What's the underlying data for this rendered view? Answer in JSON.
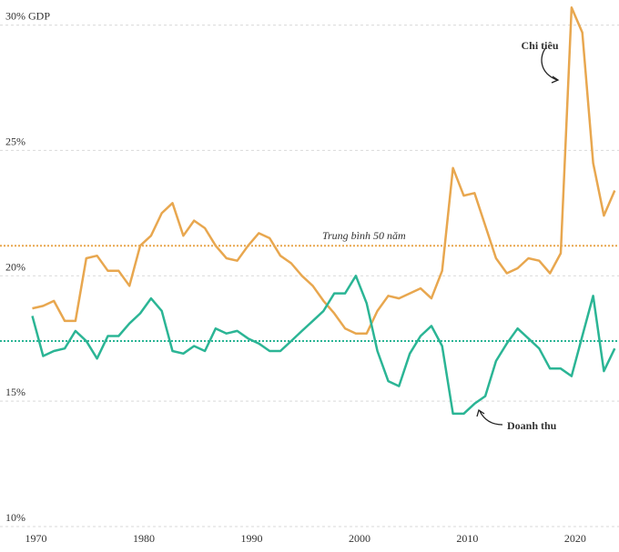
{
  "chart_data": {
    "type": "line",
    "x": [
      1970,
      1971,
      1972,
      1973,
      1974,
      1975,
      1976,
      1977,
      1978,
      1979,
      1980,
      1981,
      1982,
      1983,
      1984,
      1985,
      1986,
      1987,
      1988,
      1989,
      1990,
      1991,
      1992,
      1993,
      1994,
      1995,
      1996,
      1997,
      1998,
      1999,
      2000,
      2001,
      2002,
      2003,
      2004,
      2005,
      2006,
      2007,
      2008,
      2009,
      2010,
      2011,
      2012,
      2013,
      2014,
      2015,
      2016,
      2017,
      2018,
      2019,
      2020,
      2021,
      2022,
      2023,
      2024
    ],
    "series": [
      {
        "name": "Chi tiêu",
        "color": "#e8a74f",
        "values": [
          18.7,
          18.8,
          19.0,
          18.2,
          18.2,
          20.7,
          20.8,
          20.2,
          20.2,
          19.6,
          21.2,
          21.6,
          22.5,
          22.9,
          21.6,
          22.2,
          21.9,
          21.2,
          20.7,
          20.6,
          21.2,
          21.7,
          21.5,
          20.8,
          20.5,
          20.0,
          19.6,
          19.0,
          18.5,
          17.9,
          17.7,
          17.7,
          18.6,
          19.2,
          19.1,
          19.3,
          19.5,
          19.1,
          20.2,
          24.3,
          23.2,
          23.3,
          22.0,
          20.7,
          20.1,
          20.3,
          20.7,
          20.6,
          20.1,
          20.9,
          30.7,
          29.7,
          24.5,
          22.4,
          23.4
        ]
      },
      {
        "name": "Doanh thu",
        "color": "#2bb595",
        "values": [
          18.4,
          16.8,
          17.0,
          17.1,
          17.8,
          17.4,
          16.7,
          17.6,
          17.6,
          18.1,
          18.5,
          19.1,
          18.6,
          17.0,
          16.9,
          17.2,
          17.0,
          17.9,
          17.7,
          17.8,
          17.5,
          17.3,
          17.0,
          17.0,
          17.4,
          17.8,
          18.2,
          18.6,
          19.3,
          19.3,
          20.0,
          18.9,
          17.0,
          15.8,
          15.6,
          16.9,
          17.6,
          18.0,
          17.2,
          14.5,
          14.5,
          14.9,
          15.2,
          16.6,
          17.3,
          17.9,
          17.5,
          17.1,
          16.3,
          16.3,
          16.0,
          17.6,
          19.2,
          16.2,
          17.1
        ]
      }
    ],
    "reference_lines": [
      {
        "value": 21.2,
        "color": "#e8a74f",
        "label": "Trung bình 50 năm"
      },
      {
        "value": 17.4,
        "color": "#2bb595"
      }
    ],
    "xlim": [
      1967,
      2024.4
    ],
    "xticks": [
      1970,
      1980,
      1990,
      2000,
      2010,
      2020
    ],
    "ylim": [
      10,
      31
    ],
    "yticks": [
      {
        "value": 10,
        "label": "10%"
      },
      {
        "value": 15,
        "label": "15%"
      },
      {
        "value": 20,
        "label": "20%"
      },
      {
        "value": 25,
        "label": "25%"
      },
      {
        "value": 30,
        "label": "30% GDP"
      }
    ],
    "grid": true
  }
}
